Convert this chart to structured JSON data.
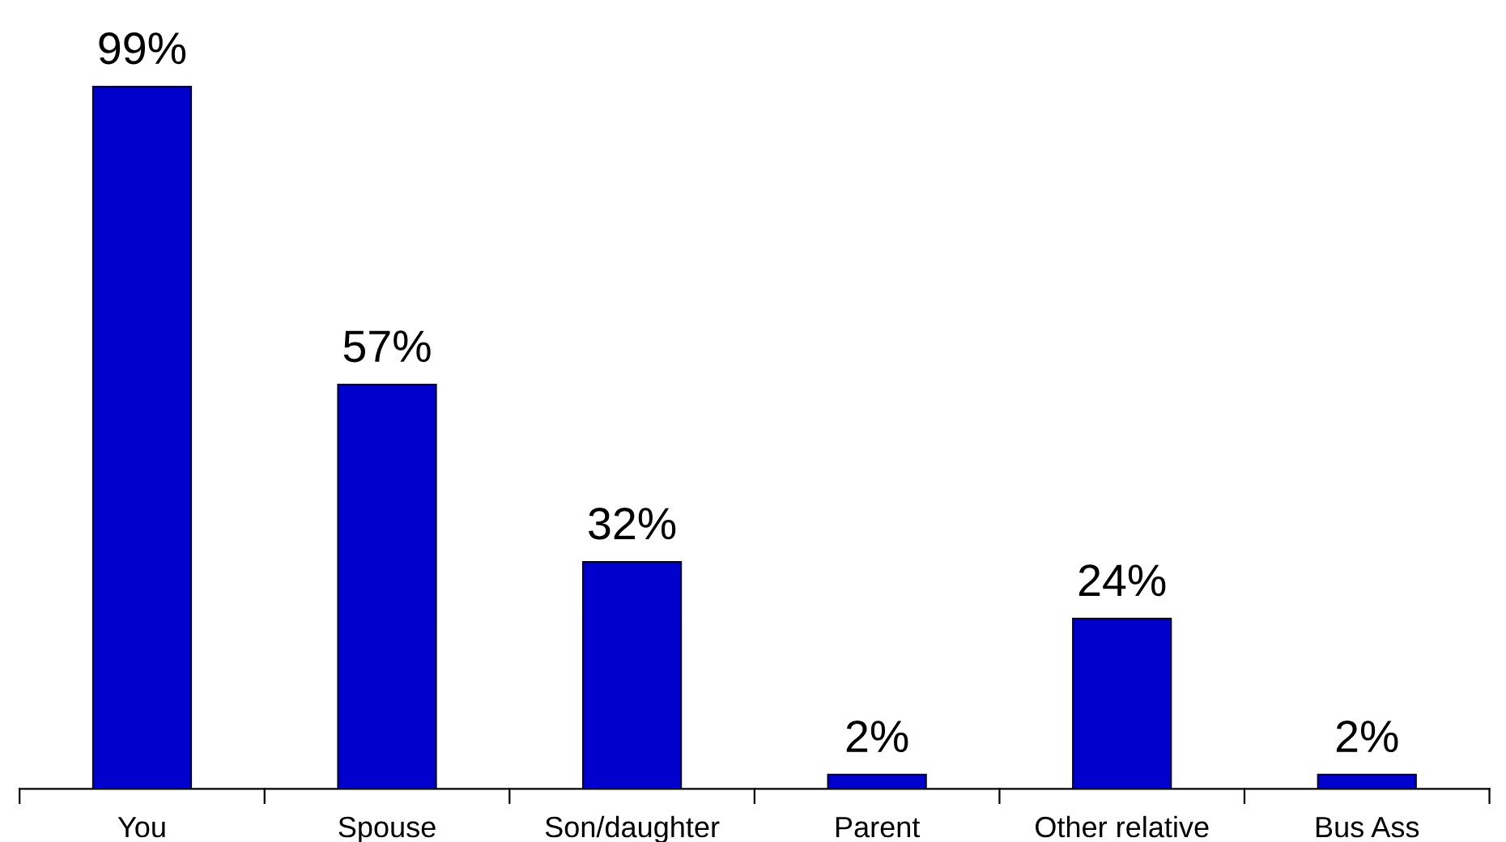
{
  "chart_data": {
    "type": "bar",
    "categories": [
      "You",
      "Spouse",
      "Son/daughter",
      "Parent",
      "Other relative",
      "Bus Ass"
    ],
    "values": [
      99,
      57,
      32,
      2,
      24,
      2
    ],
    "value_labels": [
      "99%",
      "57%",
      "32%",
      "2%",
      "24%",
      "2%"
    ],
    "color": "#0000cc",
    "grid": false,
    "legend": false
  }
}
